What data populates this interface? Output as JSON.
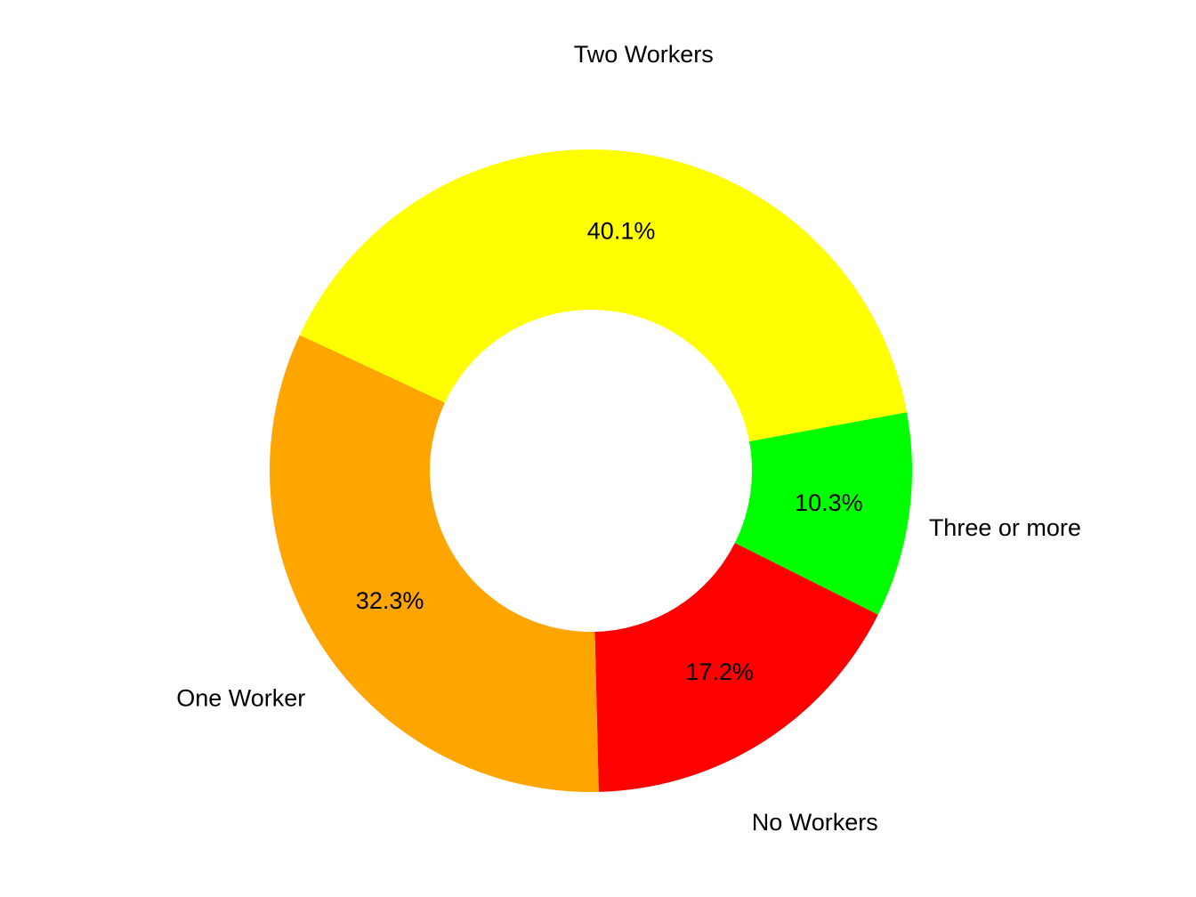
{
  "chart_data": {
    "type": "donut",
    "categories": [
      "Three or more",
      "No Workers",
      "One Worker",
      "Two Workers"
    ],
    "values": [
      10.3,
      17.2,
      32.3,
      40.1
    ],
    "value_labels": [
      "10.3%",
      "17.2%",
      "32.3%",
      "40.1%"
    ],
    "colors": [
      "#00ff00",
      "#ff0000",
      "#ffa500",
      "#ffff00"
    ]
  }
}
